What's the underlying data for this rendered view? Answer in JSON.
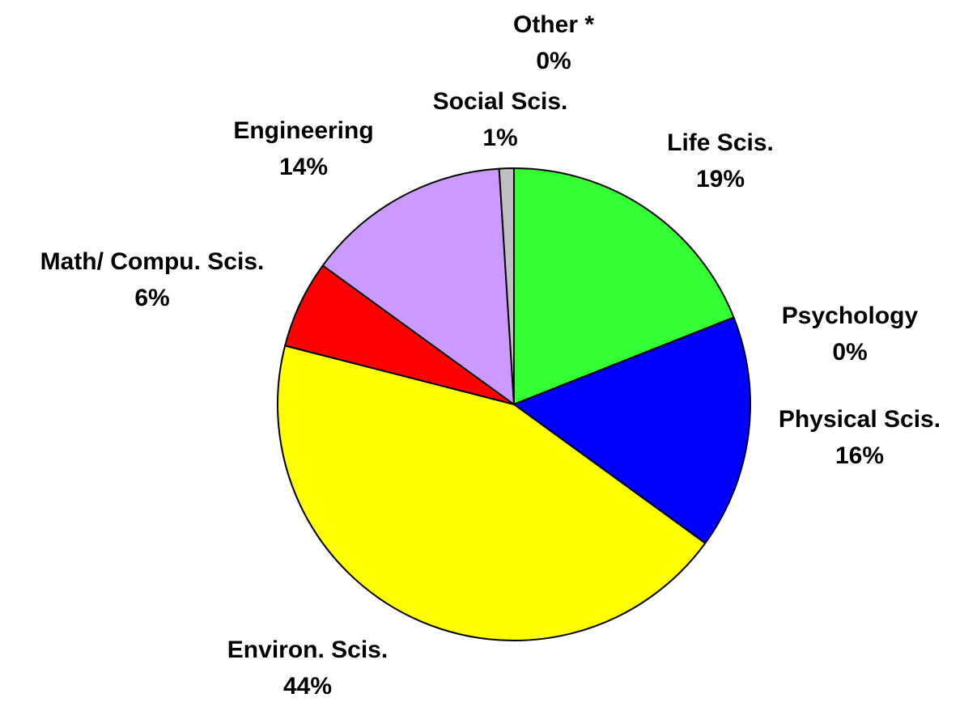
{
  "chart_data": {
    "type": "pie",
    "categories": [
      "Life Scis.",
      "Psychology",
      "Physical Scis.",
      "Environ. Scis.",
      "Math/ Compu. Scis.",
      "Engineering",
      "Social Scis.",
      "Other *"
    ],
    "values": [
      19,
      0,
      16,
      44,
      6,
      14,
      1,
      0
    ],
    "value_labels": [
      "19%",
      "0%",
      "16%",
      "44%",
      "6%",
      "14%",
      "1%",
      "0%"
    ],
    "colors": [
      "#33ff33",
      null,
      "#0000ff",
      "#ffff00",
      "#ff0000",
      "#cc99ff",
      "#c0c0c0",
      null
    ]
  }
}
